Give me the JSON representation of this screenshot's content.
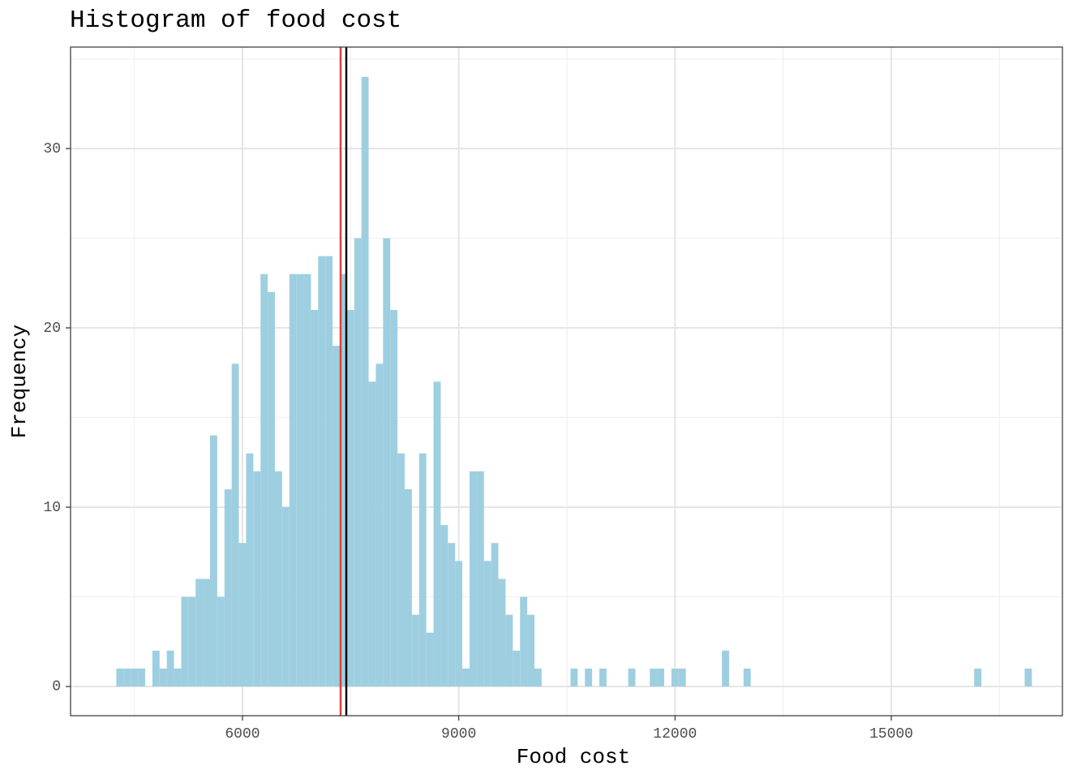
{
  "chart_data": {
    "type": "histogram",
    "title": "Histogram of food cost",
    "x_label": "Food cost",
    "y_label": "Frequency",
    "bins": [
      4250,
      4350,
      4450,
      4550,
      4650,
      4750,
      4850,
      4950,
      5050,
      5150,
      5250,
      5350,
      5450,
      5550,
      5650,
      5750,
      5850,
      5950,
      6050,
      6150,
      6250,
      6350,
      6450,
      6550,
      6650,
      6750,
      6850,
      6950,
      7050,
      7150,
      7250,
      7350,
      7450,
      7550,
      7650,
      7750,
      7850,
      7950,
      8050,
      8150,
      8250,
      8350,
      8450,
      8550,
      8650,
      8750,
      8850,
      8950,
      9050,
      9150,
      9250,
      9350,
      9450,
      9550,
      9650,
      9750,
      9850,
      9950,
      10050,
      10150,
      10250,
      10350,
      10450,
      10550,
      10650,
      10750,
      10850,
      10950,
      11050,
      11150,
      11250,
      11350,
      11450,
      11550,
      11650,
      11750,
      11850,
      11950,
      12050,
      12150,
      12250,
      12350,
      12450,
      12550,
      12650,
      12750,
      12850,
      12950,
      13050,
      13150,
      13250,
      13350,
      13450,
      13550,
      13650,
      13750,
      13850,
      13950,
      14050,
      14150,
      14250,
      14350,
      14450,
      14550,
      14650,
      14750,
      14850,
      14950,
      15050,
      15150,
      15250,
      15350,
      15450,
      15550,
      15650,
      15750,
      15850,
      15950,
      16050,
      16150,
      16250,
      16350,
      16450,
      16550,
      16650,
      16750,
      16850,
      16950
    ],
    "values": [
      1,
      1,
      1,
      1,
      0,
      2,
      1,
      2,
      1,
      5,
      5,
      6,
      6,
      14,
      5,
      11,
      18,
      8,
      13,
      12,
      23,
      22,
      12,
      10,
      23,
      23,
      23,
      21,
      24,
      24,
      19,
      23,
      21,
      25,
      34,
      17,
      18,
      25,
      21,
      13,
      11,
      4,
      13,
      3,
      17,
      9,
      8,
      7,
      1,
      12,
      12,
      7,
      8,
      6,
      4,
      2,
      5,
      4,
      1,
      0,
      0,
      0,
      0,
      1,
      0,
      1,
      0,
      1,
      0,
      0,
      0,
      1,
      0,
      0,
      1,
      1,
      0,
      1,
      1,
      0,
      0,
      0,
      0,
      0,
      2,
      0,
      0,
      1,
      0,
      0,
      0,
      0,
      0,
      0,
      0,
      0,
      0,
      0,
      0,
      0,
      0,
      0,
      0,
      0,
      0,
      0,
      0,
      0,
      0,
      0,
      0,
      0,
      0,
      0,
      0,
      0,
      0,
      0,
      0,
      1,
      0,
      0,
      0,
      0,
      0,
      0,
      1
    ],
    "color": "#9ecfe0",
    "vlines": [
      {
        "value": 7361,
        "color": "#e0403a"
      },
      {
        "value": 7440,
        "color": "#000000"
      }
    ],
    "xlim": [
      3615,
      17374
    ],
    "xticks": [
      6000,
      9000,
      12000,
      15000
    ],
    "ylim": [
      -1.63,
      35.66
    ],
    "yticks": [
      0,
      10,
      20,
      30
    ],
    "grid": true
  }
}
